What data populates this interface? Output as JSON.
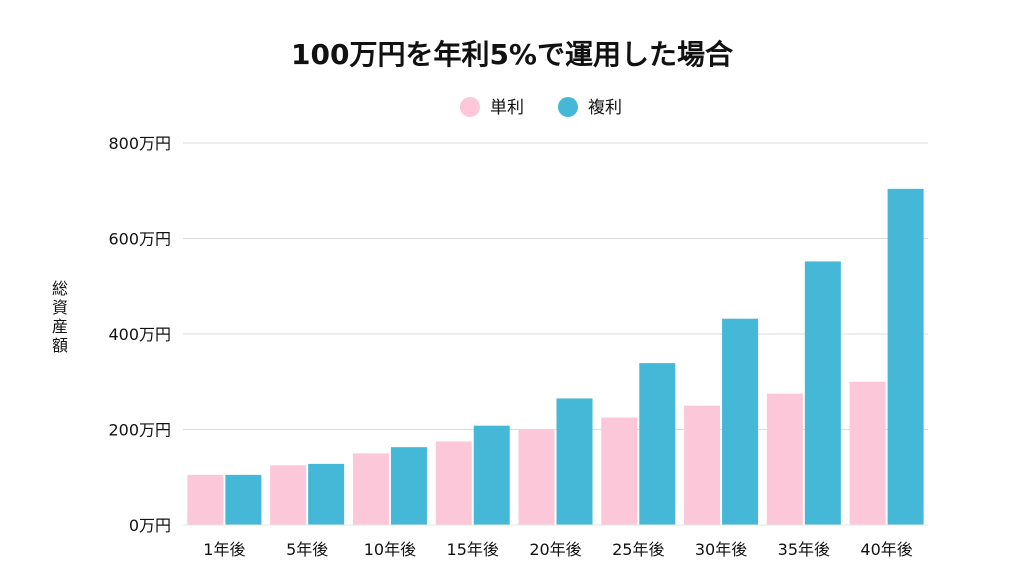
{
  "colors": {
    "simple": "#fcc7d8",
    "compound": "#44b8d6",
    "grid": "#dcdcdc",
    "text": "#111111",
    "background": "#ffffff"
  },
  "chart_data": {
    "type": "bar",
    "title": "100万円を年利5%で運用した場合",
    "xlabel": "",
    "ylabel": "総資産額",
    "categories": [
      "1年後",
      "5年後",
      "10年後",
      "15年後",
      "20年後",
      "25年後",
      "30年後",
      "35年後",
      "40年後"
    ],
    "series": [
      {
        "name": "単利",
        "color": "#fcc7d8",
        "values": [
          105,
          125,
          150,
          175,
          200,
          225,
          250,
          275,
          300
        ]
      },
      {
        "name": "複利",
        "color": "#44b8d6",
        "values": [
          105,
          128,
          163,
          208,
          265,
          339,
          432,
          552,
          704
        ]
      }
    ],
    "ylim": [
      0,
      800
    ],
    "yticks": [
      0,
      200,
      400,
      600,
      800
    ],
    "ytick_labels": [
      "0万円",
      "200万円",
      "400万円",
      "600万円",
      "800万円"
    ],
    "grid": true,
    "legend_position": "top-center"
  }
}
